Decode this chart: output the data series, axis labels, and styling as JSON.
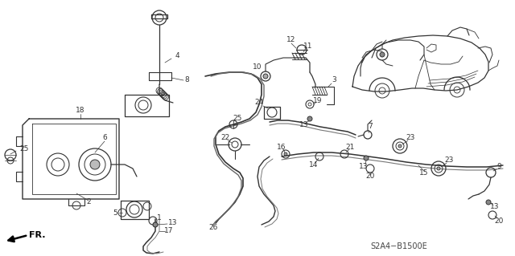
{
  "bg_color": "#ffffff",
  "line_color": "#333333",
  "diagram_code": "S2A4−B1500E",
  "fig_w": 6.4,
  "fig_h": 3.19,
  "dpi": 100
}
